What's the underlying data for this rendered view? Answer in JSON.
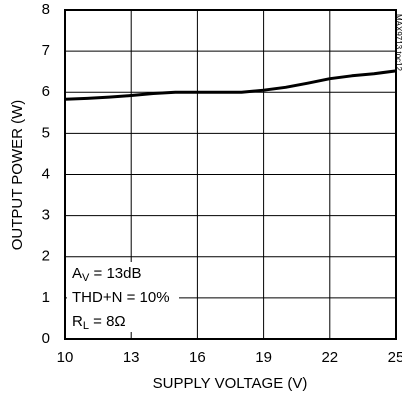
{
  "chart_data": {
    "type": "line",
    "x_label": "SUPPLY VOLTAGE (V)",
    "y_label": "OUTPUT POWER (W)",
    "x": [
      10,
      11,
      12,
      13,
      14,
      15,
      16,
      17,
      18,
      19,
      20,
      21,
      22,
      23,
      24,
      25
    ],
    "series": [
      {
        "color": "#000000",
        "values": [
          5.83,
          5.85,
          5.88,
          5.92,
          5.97,
          6.0,
          6.0,
          6.0,
          6.0,
          6.05,
          6.12,
          6.22,
          6.33,
          6.4,
          6.45,
          6.52
        ]
      }
    ],
    "xlim": [
      10,
      25
    ],
    "xticks": [
      10,
      13,
      16,
      19,
      22,
      25
    ],
    "ylim": [
      0,
      8
    ],
    "yticks": [
      0,
      1,
      2,
      3,
      4,
      5,
      6,
      7,
      8
    ],
    "grid": true,
    "annotations": [
      {
        "text": "A",
        "sub": "V",
        "rest": " = 13dB"
      },
      {
        "text": "THD+N = 10%"
      },
      {
        "text": "R",
        "sub": "L",
        "rest": " = 8Ω"
      }
    ],
    "figure_id": "MAX9713 toc12"
  }
}
